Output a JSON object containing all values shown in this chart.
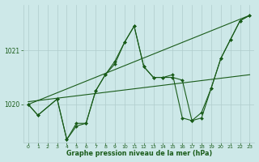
{
  "background_color": "#cde8e8",
  "grid_color": "#b0cccc",
  "line_color": "#1a5c1a",
  "xlabel_label": "Graphe pression niveau de la mer (hPa)",
  "xlim": [
    -0.5,
    23.5
  ],
  "ylim": [
    1019.3,
    1021.85
  ],
  "yticks": [
    1020,
    1021
  ],
  "xticks": [
    0,
    1,
    2,
    3,
    4,
    5,
    6,
    7,
    8,
    9,
    10,
    11,
    12,
    13,
    14,
    15,
    16,
    17,
    18,
    19,
    20,
    21,
    22,
    23
  ],
  "series": [
    {
      "x": [
        0,
        23
      ],
      "y": [
        1020.0,
        1021.65
      ],
      "marker": false
    },
    {
      "x": [
        0,
        23
      ],
      "y": [
        1020.05,
        1020.55
      ],
      "marker": false
    },
    {
      "x": [
        0,
        1,
        3,
        4,
        5,
        6,
        7,
        8,
        9,
        10,
        11,
        12,
        13,
        14,
        15,
        16,
        17,
        18,
        19,
        20,
        21,
        22,
        23
      ],
      "y": [
        1020.0,
        1019.8,
        1020.1,
        1019.35,
        1019.6,
        1019.65,
        1020.25,
        1020.55,
        1020.8,
        1021.15,
        1021.45,
        1020.7,
        1020.5,
        1020.5,
        1020.55,
        1019.75,
        1019.7,
        1019.85,
        1020.3,
        1020.85,
        1021.2,
        1021.55,
        1021.65
      ],
      "marker": true
    },
    {
      "x": [
        0,
        1,
        3,
        4,
        5,
        6,
        7,
        8,
        9,
        10,
        11,
        12,
        13,
        14,
        15,
        16,
        17,
        18,
        19,
        20,
        21,
        22,
        23
      ],
      "y": [
        1020.0,
        1019.8,
        1020.1,
        1019.35,
        1019.65,
        1019.65,
        1020.25,
        1020.55,
        1020.75,
        1021.15,
        1021.45,
        1020.7,
        1020.5,
        1020.5,
        1020.5,
        1020.45,
        1019.7,
        1019.75,
        1020.3,
        1020.85,
        1021.2,
        1021.55,
        1021.65
      ],
      "marker": true
    }
  ]
}
